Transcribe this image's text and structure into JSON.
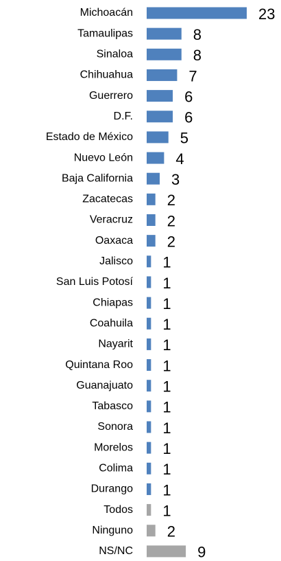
{
  "chart_data": {
    "type": "bar",
    "orientation": "horizontal",
    "categories": [
      "Michoacán",
      "Tamaulipas",
      "Sinaloa",
      "Chihuahua",
      "Guerrero",
      "D.F.",
      "Estado de México",
      "Nuevo León",
      "Baja California",
      "Zacatecas",
      "Veracruz",
      "Oaxaca",
      "Jalisco",
      "San Luis Potosí",
      "Chiapas",
      "Coahuila",
      "Nayarit",
      "Quintana Roo",
      "Guanajuato",
      "Tabasco",
      "Sonora",
      "Morelos",
      "Colima",
      "Durango",
      "Todos",
      "Ninguno",
      "NS/NC"
    ],
    "values": [
      23,
      8,
      8,
      7,
      6,
      6,
      5,
      4,
      3,
      2,
      2,
      2,
      1,
      1,
      1,
      1,
      1,
      1,
      1,
      1,
      1,
      1,
      1,
      1,
      1,
      2,
      9
    ],
    "colors": [
      "#4f81bd",
      "#4f81bd",
      "#4f81bd",
      "#4f81bd",
      "#4f81bd",
      "#4f81bd",
      "#4f81bd",
      "#4f81bd",
      "#4f81bd",
      "#4f81bd",
      "#4f81bd",
      "#4f81bd",
      "#4f81bd",
      "#4f81bd",
      "#4f81bd",
      "#4f81bd",
      "#4f81bd",
      "#4f81bd",
      "#4f81bd",
      "#4f81bd",
      "#4f81bd",
      "#4f81bd",
      "#4f81bd",
      "#4f81bd",
      "#a6a6a6",
      "#a6a6a6",
      "#a6a6a6"
    ]
  }
}
